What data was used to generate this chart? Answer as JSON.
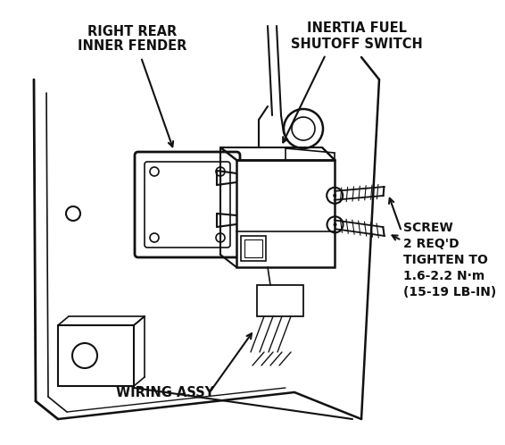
{
  "bg_color": "#ffffff",
  "line_color": "#111111",
  "fontsize": 10.5,
  "fig_width": 5.0,
  "fig_height": 4.79,
  "labels": {
    "right_rear_1": "RIGHT REAR",
    "right_rear_2": "INNER FENDER",
    "inertia_1": "INERTIA FUEL",
    "inertia_2": "SHUTOFF SWITCH",
    "screw": [
      "SCREW",
      "2 REQ'D",
      "TIGHTEN TO",
      "1.6-2.2 N·m",
      "(15-19 LB-IN)"
    ],
    "wiring": "WIRING ASSY"
  }
}
